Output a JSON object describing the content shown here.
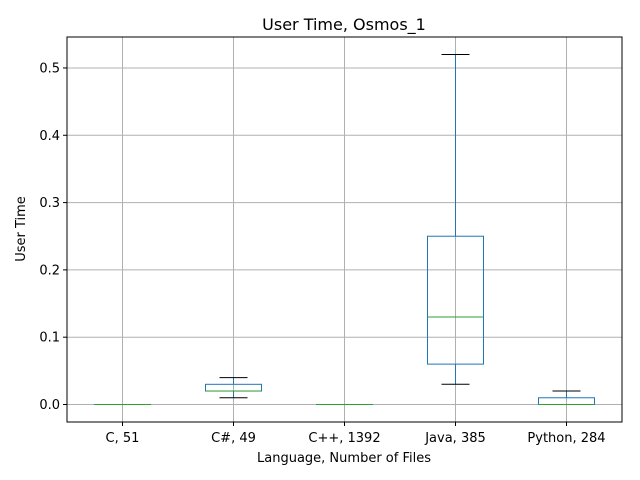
{
  "chart_data": {
    "type": "box",
    "title": "User Time, Osmos_1",
    "xlabel": "Language, Number of Files",
    "ylabel": "User Time",
    "ylim": [
      -0.026,
      0.546
    ],
    "yticks": [
      "0.0",
      "0.1",
      "0.2",
      "0.3",
      "0.4",
      "0.5"
    ],
    "grid": true,
    "categories": [
      "C, 51",
      "C#, 49",
      "C++, 1392",
      "Java, 385",
      "Python, 284"
    ],
    "boxes": [
      {
        "whisker_low": 0.0,
        "q1": 0.0,
        "median": 0.0,
        "q3": 0.0,
        "whisker_high": 0.0
      },
      {
        "whisker_low": 0.01,
        "q1": 0.02,
        "median": 0.02,
        "q3": 0.03,
        "whisker_high": 0.04
      },
      {
        "whisker_low": 0.0,
        "q1": 0.0,
        "median": 0.0,
        "q3": 0.0,
        "whisker_high": 0.0
      },
      {
        "whisker_low": 0.03,
        "q1": 0.06,
        "median": 0.13,
        "q3": 0.25,
        "whisker_high": 0.52
      },
      {
        "whisker_low": 0.0,
        "q1": 0.0,
        "median": 0.0,
        "q3": 0.01,
        "whisker_high": 0.02
      }
    ],
    "colors": {
      "box": "#1f77b4",
      "median": "#2ca02c",
      "whisker": "#1f77b4",
      "cap": "#000000",
      "grid": "#b0b0b0"
    }
  }
}
